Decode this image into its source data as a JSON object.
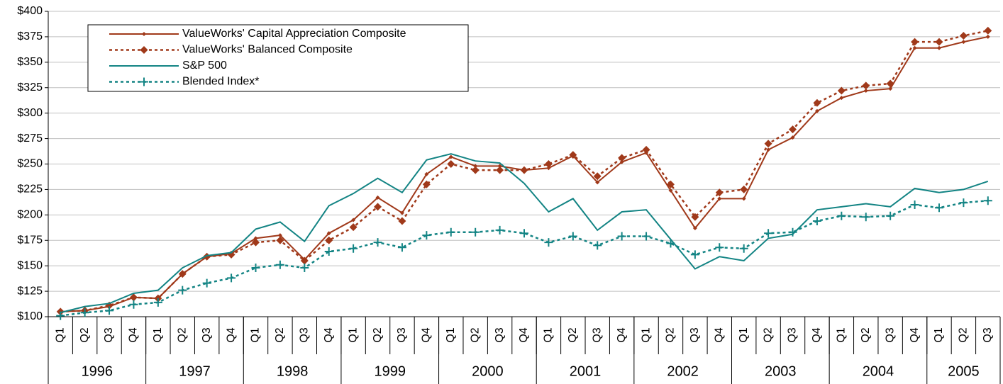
{
  "chart_data": {
    "type": "line",
    "categories": [
      "Q1",
      "Q2",
      "Q3",
      "Q4",
      "Q1",
      "Q2",
      "Q3",
      "Q4",
      "Q1",
      "Q2",
      "Q3",
      "Q4",
      "Q1",
      "Q2",
      "Q3",
      "Q4",
      "Q1",
      "Q2",
      "Q3",
      "Q4",
      "Q1",
      "Q2",
      "Q3",
      "Q4",
      "Q1",
      "Q2",
      "Q3",
      "Q4",
      "Q1",
      "Q2",
      "Q3",
      "Q4",
      "Q1",
      "Q2",
      "Q3",
      "Q4",
      "Q1",
      "Q2",
      "Q3"
    ],
    "category_groups": [
      {
        "label": "1996",
        "size": 4
      },
      {
        "label": "1997",
        "size": 4
      },
      {
        "label": "1998",
        "size": 4
      },
      {
        "label": "1999",
        "size": 4
      },
      {
        "label": "2000",
        "size": 4
      },
      {
        "label": "2001",
        "size": 4
      },
      {
        "label": "2002",
        "size": 4
      },
      {
        "label": "2003",
        "size": 4
      },
      {
        "label": "2004",
        "size": 4
      },
      {
        "label": "2005",
        "size": 3
      }
    ],
    "ylim": [
      100,
      400
    ],
    "yticks": [
      {
        "value": 100,
        "label": "$100"
      },
      {
        "value": 125,
        "label": "$125"
      },
      {
        "value": 150,
        "label": "$150"
      },
      {
        "value": 175,
        "label": "$175"
      },
      {
        "value": 200,
        "label": "$200"
      },
      {
        "value": 225,
        "label": "$225"
      },
      {
        "value": 250,
        "label": "$250"
      },
      {
        "value": 275,
        "label": "$275"
      },
      {
        "value": 300,
        "label": "$300"
      },
      {
        "value": 325,
        "label": "$325"
      },
      {
        "value": 350,
        "label": "$350"
      },
      {
        "value": 375,
        "label": "$375"
      },
      {
        "value": 400,
        "label": "$400"
      }
    ],
    "grid": true,
    "legend": "upper left",
    "series": [
      {
        "name": "ValueWorks' Capital Appreciation Composite",
        "color": "#a0391a",
        "dashed": false,
        "marker": "small-diamond",
        "values": [
          105,
          106,
          110,
          119,
          118,
          142,
          159,
          162,
          177,
          180,
          156,
          182,
          195,
          217,
          202,
          240,
          257,
          248,
          248,
          244,
          246,
          258,
          232,
          252,
          261,
          224,
          187,
          216,
          216,
          264,
          276,
          302,
          315,
          322,
          324,
          364,
          364,
          370,
          375
        ]
      },
      {
        "name": "ValueWorks' Balanced Composite",
        "color": "#a0391a",
        "dashed": true,
        "marker": "diamond",
        "values": [
          105,
          106,
          111,
          119,
          118,
          142,
          159,
          161,
          173,
          175,
          155,
          175,
          188,
          208,
          194,
          230,
          250,
          244,
          244,
          244,
          250,
          259,
          238,
          256,
          264,
          230,
          198,
          222,
          225,
          270,
          284,
          310,
          322,
          327,
          329,
          370,
          370,
          376,
          381
        ]
      },
      {
        "name": "S&P 500",
        "color": "#138484",
        "dashed": false,
        "marker": "none",
        "values": [
          104,
          110,
          113,
          123,
          126,
          148,
          160,
          163,
          186,
          193,
          174,
          209,
          221,
          236,
          222,
          254,
          260,
          253,
          251,
          231,
          203,
          216,
          185,
          203,
          205,
          176,
          147,
          159,
          155,
          177,
          181,
          205,
          208,
          211,
          208,
          226,
          222,
          225,
          233
        ]
      },
      {
        "name": "Blended Index*",
        "color": "#138484",
        "dashed": true,
        "marker": "plus",
        "values": [
          101,
          104,
          106,
          112,
          114,
          126,
          133,
          138,
          148,
          151,
          148,
          164,
          167,
          173,
          168,
          180,
          183,
          183,
          185,
          182,
          173,
          179,
          170,
          179,
          179,
          172,
          161,
          168,
          167,
          182,
          183,
          194,
          199,
          198,
          199,
          210,
          207,
          212,
          214
        ]
      }
    ]
  }
}
